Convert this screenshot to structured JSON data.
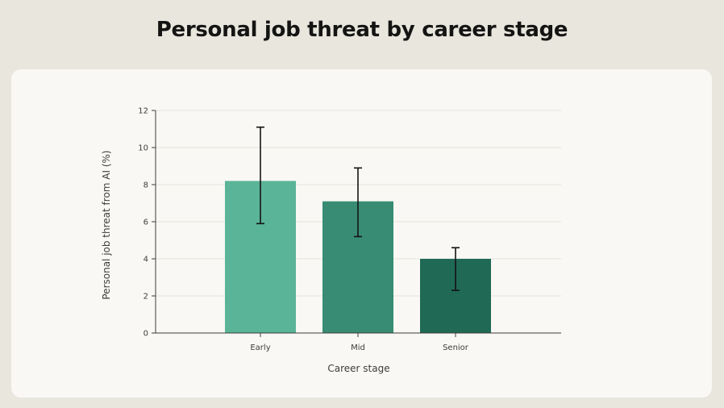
{
  "page": {
    "title": "Personal job threat by career stage"
  },
  "chart_data": {
    "type": "bar",
    "categories": [
      "Early",
      "Mid",
      "Senior"
    ],
    "values": [
      8.2,
      7.1,
      4.0
    ],
    "error_low": [
      5.9,
      5.2,
      2.3
    ],
    "error_high": [
      11.1,
      8.9,
      4.6
    ],
    "colors": [
      "#5ab497",
      "#388c73",
      "#1f6955"
    ],
    "xlabel": "Career stage",
    "ylabel": "Personal job threat from AI (%)",
    "ylim": [
      0,
      12
    ],
    "yticks": [
      "0",
      "2",
      "4",
      "6",
      "8",
      "10",
      "12"
    ],
    "grid": true,
    "legend": "none"
  }
}
